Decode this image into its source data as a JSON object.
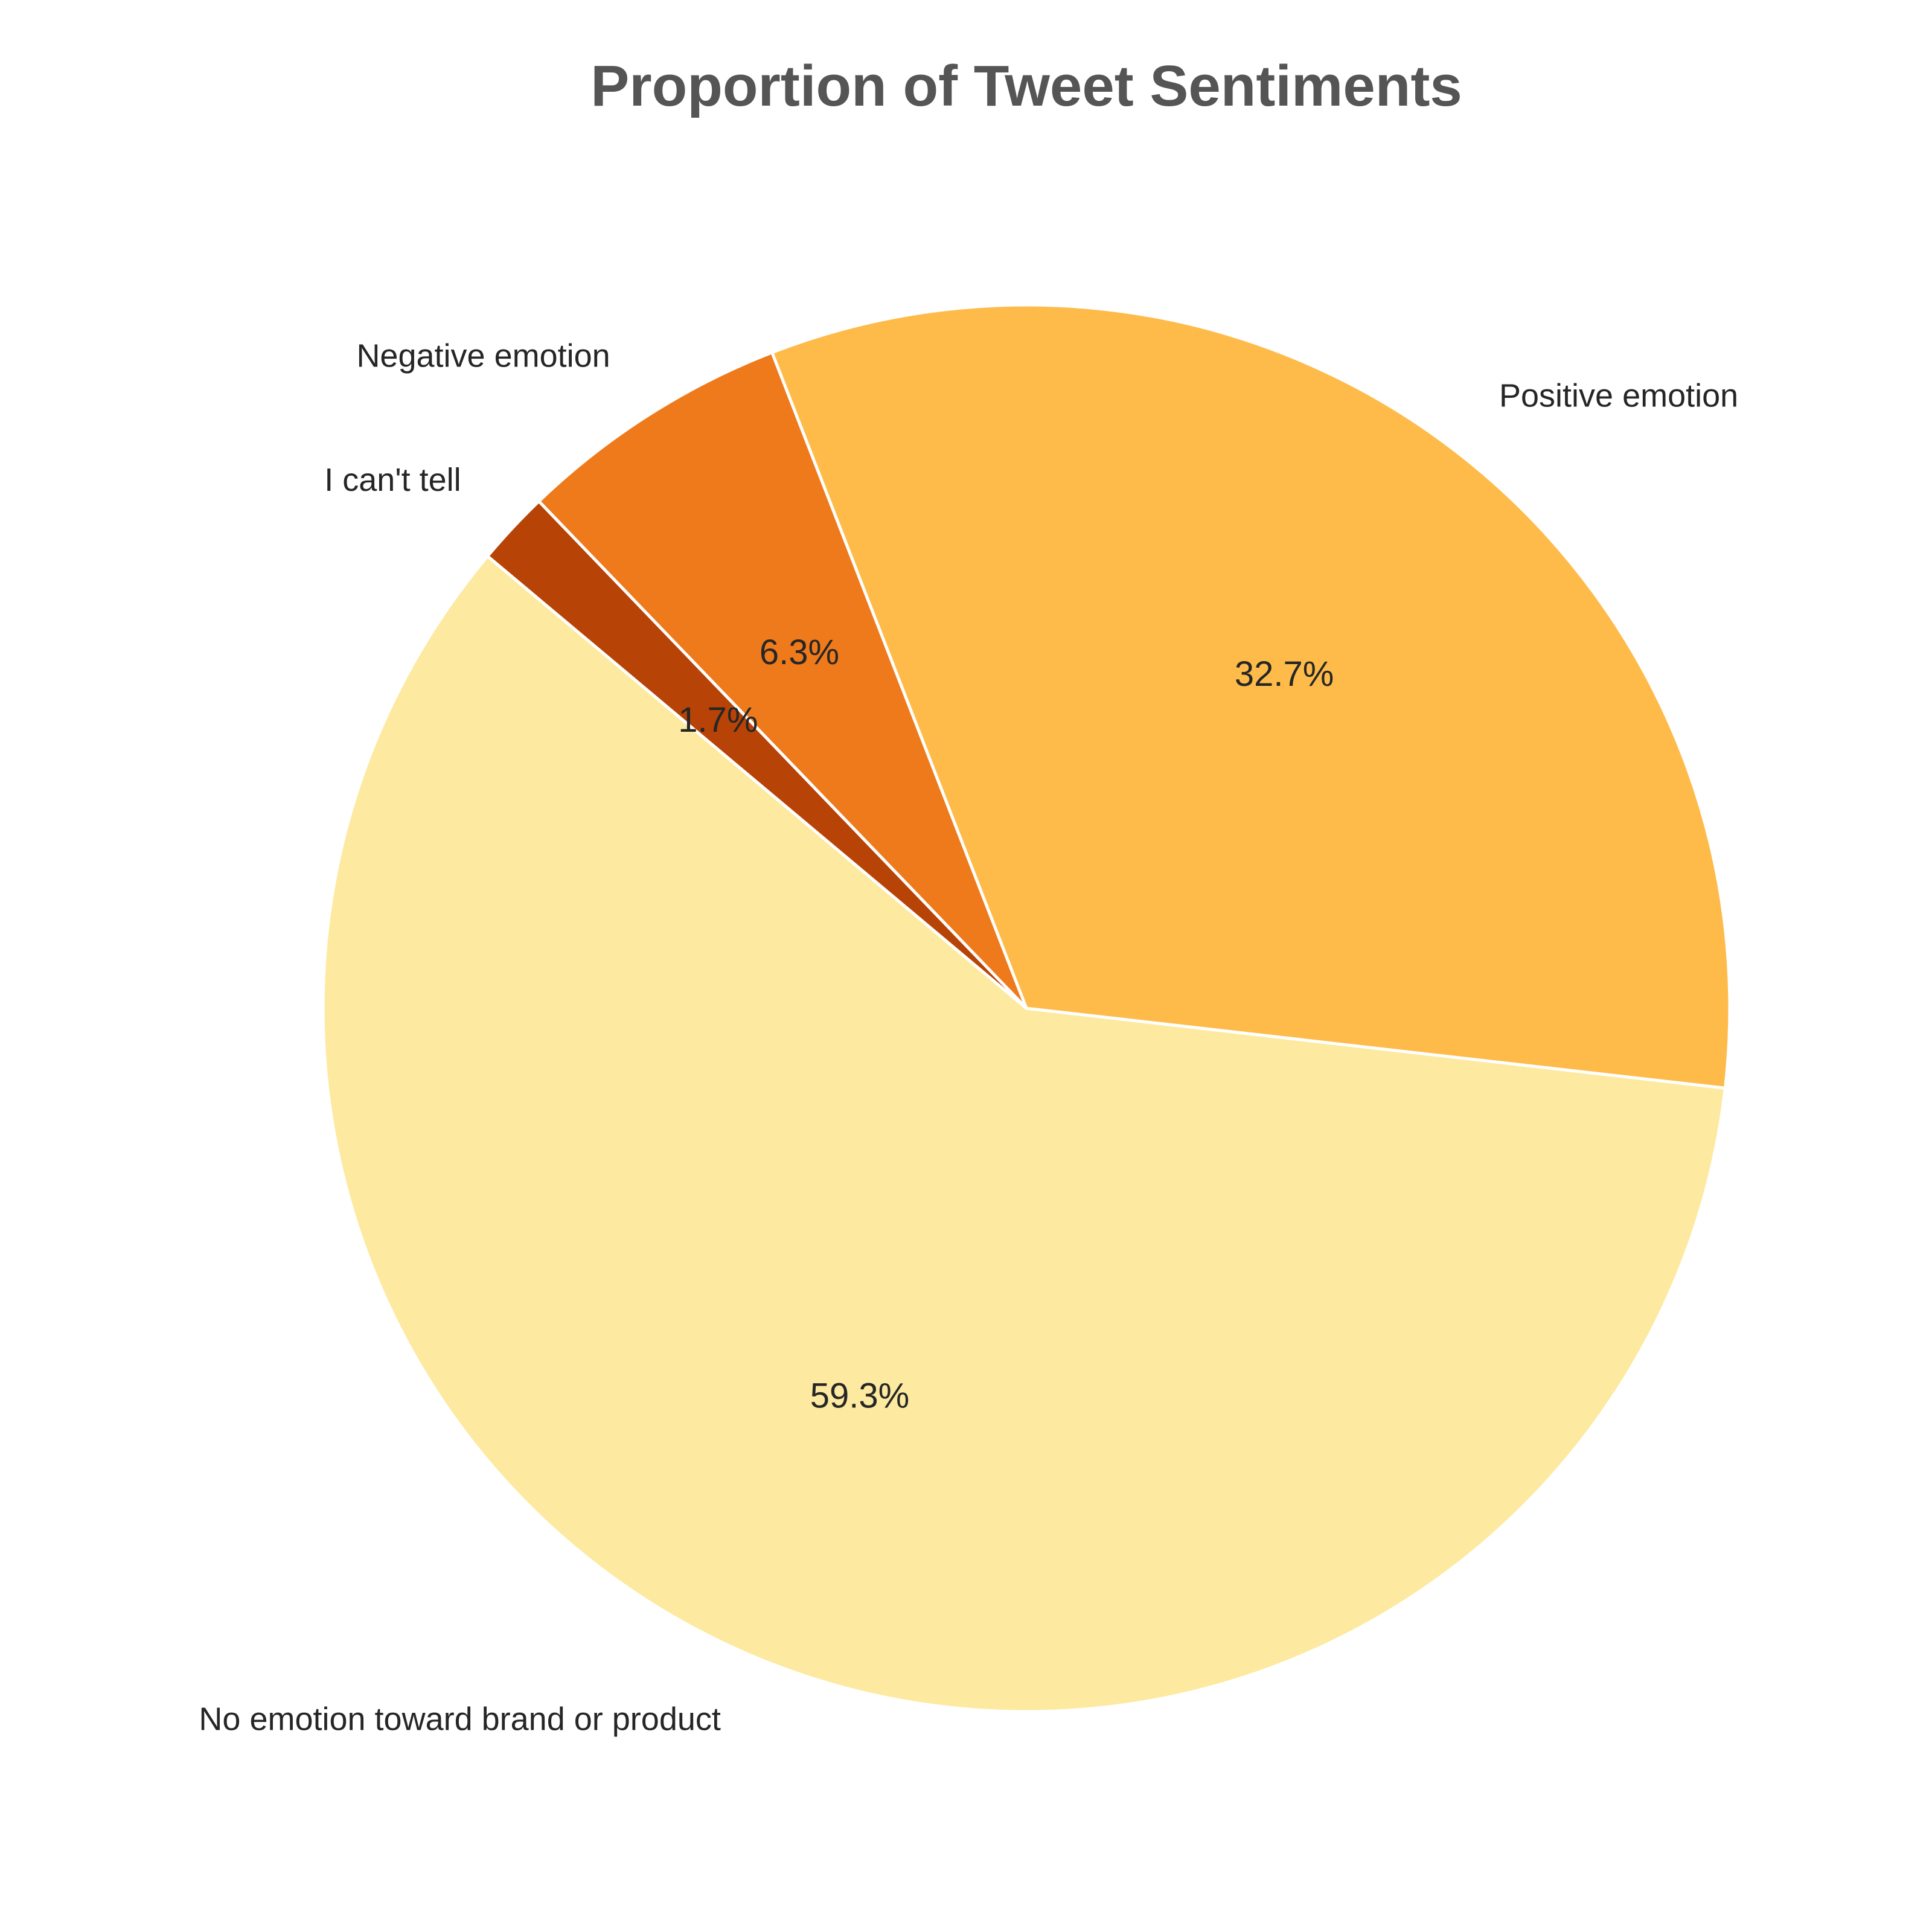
{
  "chart_data": {
    "type": "pie",
    "title": "Proportion of Tweet Sentiments",
    "start_angle_deg": 140,
    "direction": "counterclockwise",
    "slices": [
      {
        "label": "No emotion toward brand or product",
        "value": 59.3,
        "pct_label": "59.3%",
        "color": "#fdeaa0"
      },
      {
        "label": "Positive emotion",
        "value": 32.7,
        "pct_label": "32.7%",
        "color": "#febb4a"
      },
      {
        "label": "Negative emotion",
        "value": 6.3,
        "pct_label": "6.3%",
        "color": "#ef7a1c"
      },
      {
        "label": "I can't tell",
        "value": 1.7,
        "pct_label": "1.7%",
        "color": "#b84306"
      }
    ]
  }
}
